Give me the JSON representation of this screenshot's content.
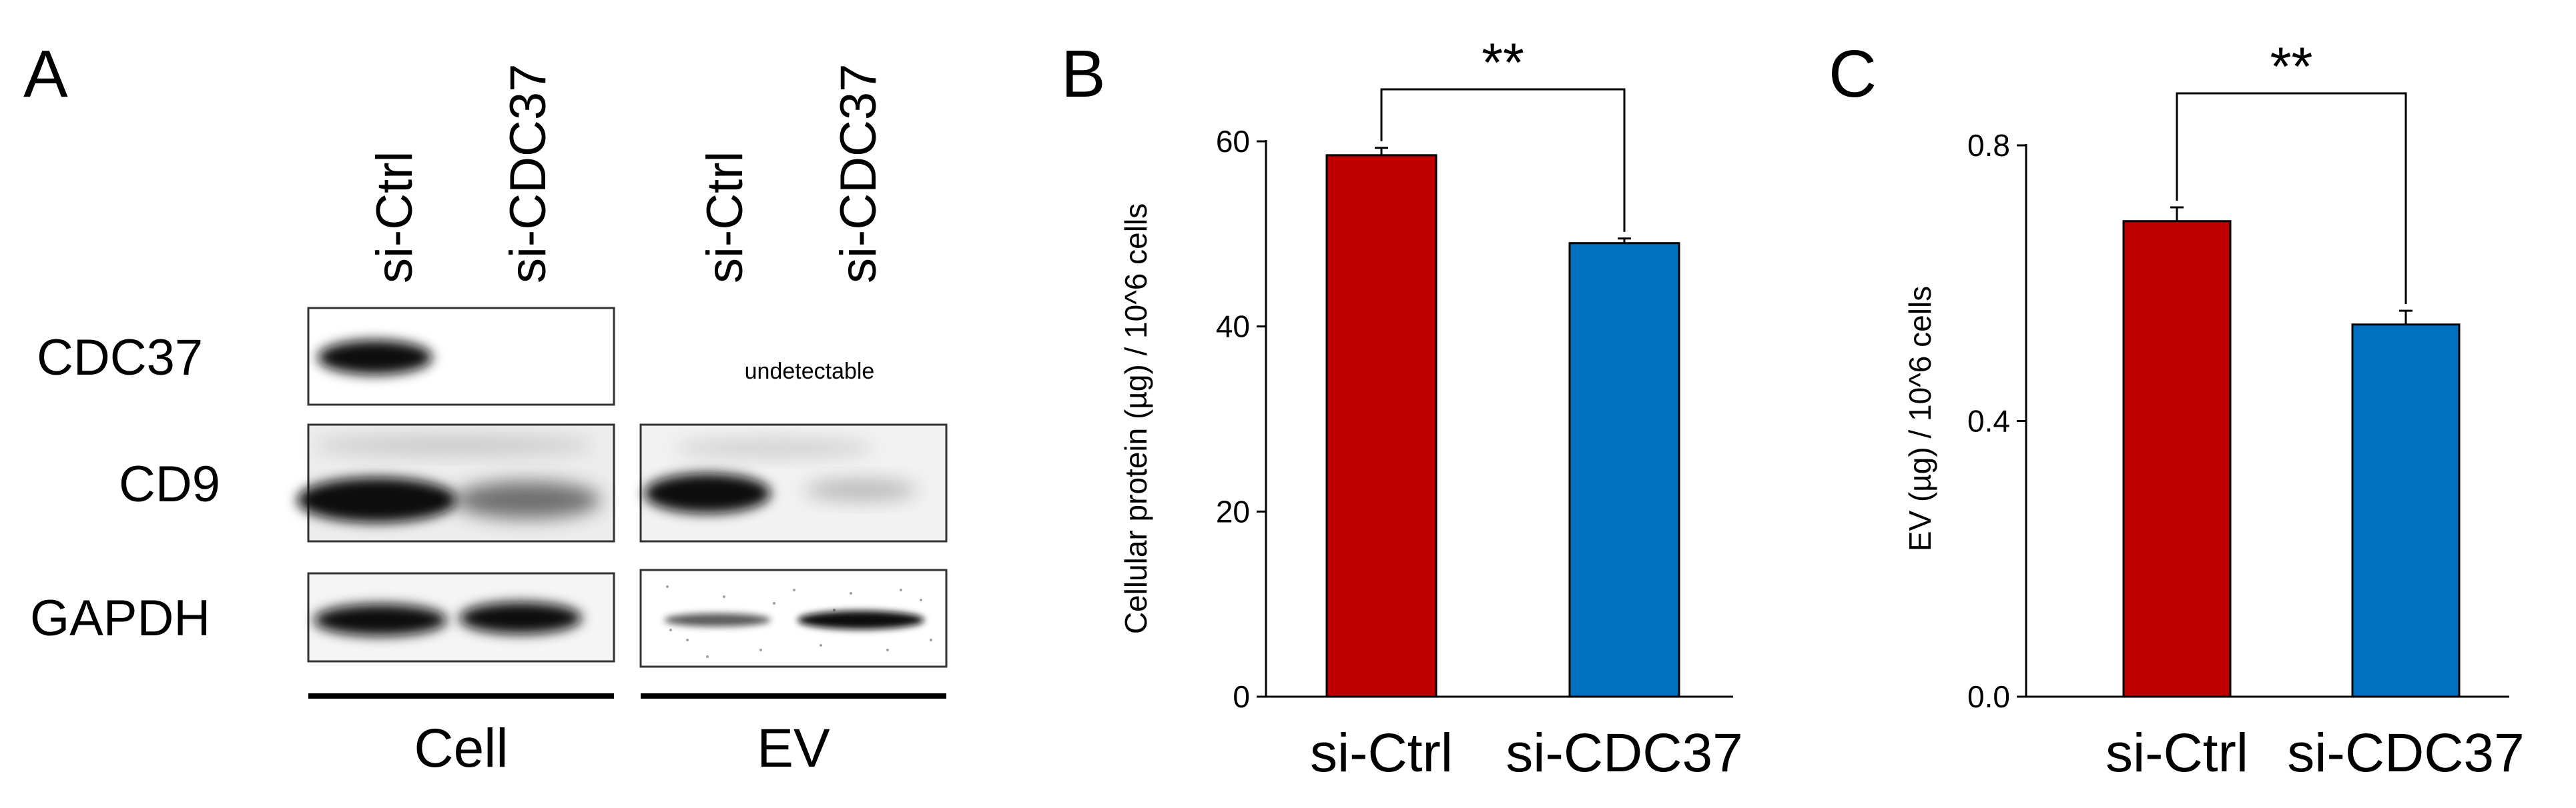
{
  "panel_a": {
    "label": "A",
    "lane_labels": [
      "si-Ctrl",
      "si-CDC37",
      "si-Ctrl",
      "si-CDC37"
    ],
    "row_labels": [
      "CDC37",
      "CD9",
      "GAPDH"
    ],
    "undetectable_note": "undetectable",
    "group_labels": [
      "Cell",
      "EV"
    ]
  },
  "chart_data": [
    {
      "panel": "B",
      "type": "bar",
      "categories": [
        "si-Ctrl",
        "si-CDC37"
      ],
      "values": [
        58.5,
        49
      ],
      "errors": [
        0.8,
        0.5
      ],
      "colors": [
        "#C00000",
        "#0070C0"
      ],
      "ylabel": "Cellular protein (µg) / 10^6 cells",
      "xlabel": "",
      "ylim": [
        0,
        60
      ],
      "yticks": [
        "0",
        "20",
        "40",
        "60"
      ],
      "significance": "**"
    },
    {
      "panel": "C",
      "type": "bar",
      "categories": [
        "si-Ctrl",
        "si-CDC37"
      ],
      "values": [
        0.69,
        0.54
      ],
      "errors": [
        0.02,
        0.02
      ],
      "colors": [
        "#C00000",
        "#0070C0"
      ],
      "ylabel": "EV (µg) / 10^6 cells",
      "xlabel": "",
      "ylim": [
        0,
        0.8
      ],
      "yticks": [
        "0.0",
        "0.4",
        "0.8"
      ],
      "significance": "**"
    }
  ]
}
